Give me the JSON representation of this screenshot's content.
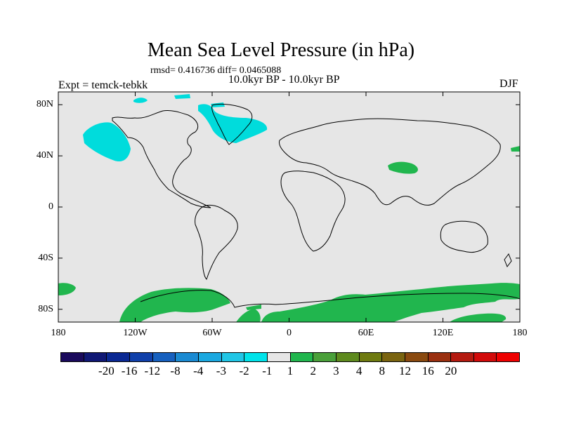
{
  "title": "Mean Sea Level Pressure (in hPa)",
  "stats": "rmsd= 0.416736 diff= 0.0465088",
  "period": "10.0kyr BP - 10.0kyr BP",
  "experiment": "Expt = temck-tebkk",
  "season": "DJF",
  "map": {
    "projection": "cylindrical equidistant",
    "lon_range": [
      -180,
      180
    ],
    "lat_range": [
      -90,
      90
    ],
    "background_color": "#e6e6e6",
    "coastline_color": "#000000"
  },
  "axes": {
    "y_ticks": [
      {
        "lat": 80,
        "label": "80N"
      },
      {
        "lat": 40,
        "label": "40N"
      },
      {
        "lat": 0,
        "label": "0"
      },
      {
        "lat": -40,
        "label": "40S"
      },
      {
        "lat": -80,
        "label": "80S"
      }
    ],
    "x_ticks": [
      {
        "lon": -180,
        "label": "180"
      },
      {
        "lon": -120,
        "label": "120W"
      },
      {
        "lon": -60,
        "label": "60W"
      },
      {
        "lon": 0,
        "label": "0"
      },
      {
        "lon": 60,
        "label": "60E"
      },
      {
        "lon": 120,
        "label": "120E"
      },
      {
        "lon": 180,
        "label": "180"
      }
    ]
  },
  "colorbar": {
    "colors": [
      "#1a0a5c",
      "#101875",
      "#0a2893",
      "#1040aa",
      "#1660bf",
      "#1a8ad2",
      "#1aa8e0",
      "#20c6e6",
      "#00e3ea",
      "#e6e6e6",
      "#21b64e",
      "#4aa03a",
      "#5e8a1e",
      "#6e7a10",
      "#7a6410",
      "#8a4a10",
      "#9a3010",
      "#b41a10",
      "#d20a0a",
      "#ee0000"
    ],
    "labels": [
      "-20",
      "-16",
      "-12",
      "-8",
      "-4",
      "-3",
      "-2",
      "-1",
      "1",
      "2",
      "3",
      "4",
      "8",
      "12",
      "16",
      "20"
    ]
  },
  "anomaly_regions": [
    {
      "name": "alaska-gulf-negative",
      "level": "-1",
      "color": "#00dcdc"
    },
    {
      "name": "greenland-negative",
      "level": "-1",
      "color": "#00dcdc"
    },
    {
      "name": "arctic-negative",
      "level": "-1",
      "color": "#00dcdc"
    },
    {
      "name": "tibet-positive",
      "level": "1",
      "color": "#21b64e"
    },
    {
      "name": "antarctica-positive",
      "level": "1",
      "color": "#21b64e"
    },
    {
      "name": "south-pacific-positive",
      "level": "1",
      "color": "#21b64e"
    },
    {
      "name": "north-pacific-east-positive",
      "level": "1",
      "color": "#21b64e"
    }
  ]
}
